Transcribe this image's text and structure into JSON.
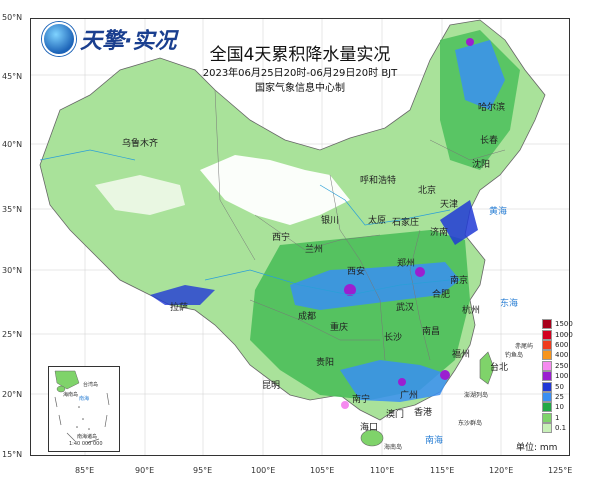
{
  "header": {
    "logo_text": "天擎·实况",
    "title": "全国4天累积降水量实况",
    "subtitle": "2023年06月25日20时-06月29日20时 BJT",
    "organization": "国家气象信息中心制"
  },
  "axes": {
    "latitudes": [
      "50°N",
      "45°N",
      "40°N",
      "35°N",
      "30°N",
      "25°N",
      "20°N",
      "15°N"
    ],
    "longitudes": [
      "85°E",
      "90°E",
      "95°E",
      "100°E",
      "105°E",
      "110°E",
      "115°E",
      "120°E",
      "125°E"
    ]
  },
  "cities": [
    "乌鲁木齐",
    "呼和浩特",
    "沈阳",
    "银川",
    "太原",
    "石家庄",
    "西宁",
    "兰州",
    "西安",
    "郑州",
    "济南",
    "成都",
    "重庆",
    "武汉",
    "合肥",
    "南京",
    "杭州",
    "长沙",
    "南昌",
    "贵阳",
    "福州",
    "台北",
    "昆明",
    "南宁",
    "广州",
    "香港",
    "澳门",
    "海口",
    "拉萨",
    "哈尔滨",
    "长春",
    "北京",
    "天津"
  ],
  "seas": [
    "黄海",
    "东海",
    "南海"
  ],
  "islands": [
    "赤尾屿",
    "钓鱼岛",
    "东沙群岛",
    "澎湖列岛",
    "海南岛"
  ],
  "legend": {
    "unit_label": "单位: mm",
    "items": [
      {
        "label": "1500",
        "color": "#a8001b"
      },
      {
        "label": "1000",
        "color": "#d2001f"
      },
      {
        "label": "600",
        "color": "#ef3b1d"
      },
      {
        "label": "400",
        "color": "#f7941d"
      },
      {
        "label": "250",
        "color": "#f58aef"
      },
      {
        "label": "100",
        "color": "#9b1fd0"
      },
      {
        "label": "50",
        "color": "#2139d6"
      },
      {
        "label": "25",
        "color": "#3a8ff2"
      },
      {
        "label": "10",
        "color": "#22a845"
      },
      {
        "label": "1",
        "color": "#7fd36a"
      },
      {
        "label": "0.1",
        "color": "#c8f0b8"
      }
    ]
  },
  "inset": {
    "scale": "1:40 000 000",
    "labels": [
      "南海",
      "台湾岛",
      "南海诸岛",
      "海南岛"
    ]
  }
}
